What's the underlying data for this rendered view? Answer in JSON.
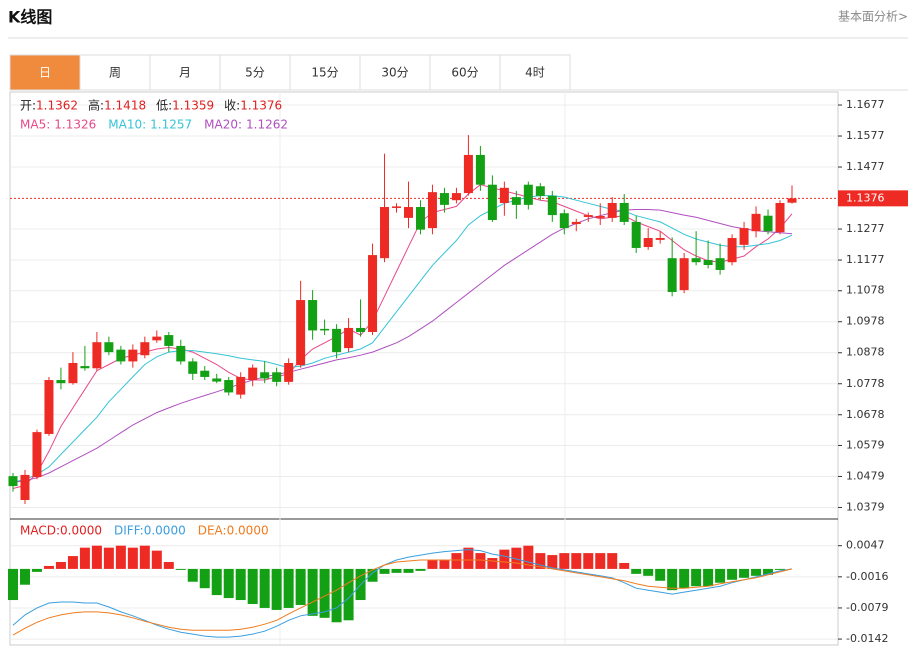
{
  "header": {
    "title": "K线图",
    "link": "基本面分析>"
  },
  "tabs": {
    "items": [
      "日",
      "周",
      "月",
      "5分",
      "15分",
      "30分",
      "60分",
      "4时"
    ],
    "active": 0
  },
  "chart_data": [
    {
      "type": "candlestick",
      "up_color": "#ee2a24",
      "down_color": "#14a014",
      "open": [
        1.048,
        1.0403,
        1.0477,
        1.0616,
        1.079,
        1.078,
        1.0835,
        1.0828,
        1.0912,
        1.0888,
        1.085,
        1.087,
        1.0918,
        1.0935,
        1.09,
        1.085,
        1.082,
        1.0795,
        1.079,
        1.0743,
        1.079,
        1.0815,
        1.0815,
        1.0784,
        1.0838,
        1.1048,
        1.0955,
        1.0955,
        1.0893,
        1.0958,
        1.0945,
        1.1183,
        1.1345,
        1.1313,
        1.1348,
        1.128,
        1.1393,
        1.137,
        1.1393,
        1.1516,
        1.142,
        1.1361,
        1.138,
        1.142,
        1.1415,
        1.1384,
        1.1328,
        1.1293,
        1.1316,
        1.1313,
        1.1313,
        1.1361,
        1.13,
        1.1219,
        1.1242,
        1.1183,
        1.108,
        1.1183,
        1.1177,
        1.1183,
        1.117,
        1.1226,
        1.127,
        1.132,
        1.1267,
        1.1362
      ],
      "high": [
        1.049,
        1.05,
        1.063,
        1.08,
        1.083,
        1.088,
        1.09,
        1.0945,
        1.093,
        1.09,
        1.0905,
        1.093,
        1.095,
        1.0945,
        1.092,
        1.086,
        1.0835,
        1.081,
        1.08,
        1.0815,
        1.084,
        1.085,
        1.083,
        1.086,
        1.111,
        1.108,
        1.0985,
        1.097,
        1.099,
        1.105,
        1.123,
        1.152,
        1.136,
        1.143,
        1.137,
        1.142,
        1.141,
        1.141,
        1.158,
        1.1545,
        1.145,
        1.143,
        1.14,
        1.143,
        1.1425,
        1.14,
        1.134,
        1.131,
        1.133,
        1.136,
        1.138,
        1.139,
        1.132,
        1.128,
        1.127,
        1.125,
        1.12,
        1.127,
        1.124,
        1.123,
        1.126,
        1.13,
        1.135,
        1.134,
        1.137,
        1.1418
      ],
      "low": [
        1.043,
        1.039,
        1.047,
        1.061,
        1.076,
        1.0775,
        1.082,
        1.082,
        1.087,
        1.084,
        1.083,
        1.086,
        1.091,
        1.088,
        1.084,
        1.079,
        1.079,
        1.078,
        1.074,
        1.073,
        1.077,
        1.078,
        1.077,
        1.0775,
        1.083,
        1.092,
        1.0935,
        1.086,
        1.088,
        1.093,
        1.0935,
        1.117,
        1.133,
        1.128,
        1.126,
        1.126,
        1.133,
        1.136,
        1.1385,
        1.14,
        1.13,
        1.132,
        1.131,
        1.134,
        1.137,
        1.13,
        1.126,
        1.127,
        1.13,
        1.129,
        1.13,
        1.129,
        1.12,
        1.121,
        1.123,
        1.106,
        1.107,
        1.116,
        1.115,
        1.113,
        1.116,
        1.121,
        1.125,
        1.126,
        1.126,
        1.1359
      ],
      "close": [
        1.0448,
        1.0484,
        1.0622,
        1.079,
        1.078,
        1.0845,
        1.0828,
        1.0912,
        1.088,
        1.085,
        1.0888,
        1.0912,
        1.093,
        1.09,
        1.085,
        1.081,
        1.08,
        1.0785,
        1.075,
        1.08,
        1.083,
        1.0795,
        1.0784,
        1.0845,
        1.1048,
        1.095,
        1.095,
        1.088,
        1.0958,
        1.0945,
        1.1193,
        1.1348,
        1.135,
        1.1348,
        1.1275,
        1.1396,
        1.1355,
        1.1393,
        1.1516,
        1.142,
        1.1306,
        1.141,
        1.1355,
        1.1355,
        1.1384,
        1.1322,
        1.128,
        1.13,
        1.1322,
        1.1319,
        1.1361,
        1.13,
        1.1216,
        1.1248,
        1.1248,
        1.1074,
        1.1183,
        1.117,
        1.1161,
        1.1145,
        1.1248,
        1.128,
        1.1326,
        1.127,
        1.1361,
        1.1376
      ],
      "ohlc_legend": [
        {
          "label": "开:",
          "value": 1.1362
        },
        {
          "label": "高:",
          "value": 1.1418
        },
        {
          "label": "低:",
          "value": 1.1359
        },
        {
          "label": "收:",
          "value": 1.1376
        }
      ],
      "ma_series": [
        {
          "name": "MA5:",
          "color": "#e8488a",
          "last": 1.1326,
          "values": [
            1.044,
            1.045,
            1.049,
            1.056,
            1.064,
            1.07,
            1.076,
            1.082,
            1.084,
            1.086,
            1.087,
            1.088,
            1.089,
            1.0895,
            1.089,
            1.088,
            1.086,
            1.084,
            1.0815,
            1.0795,
            1.079,
            1.079,
            1.08,
            1.081,
            1.0855,
            1.089,
            1.091,
            1.093,
            1.0955,
            1.0935,
            1.098,
            1.106,
            1.114,
            1.122,
            1.13,
            1.133,
            1.134,
            1.135,
            1.139,
            1.142,
            1.141,
            1.14,
            1.139,
            1.138,
            1.137,
            1.1365,
            1.135,
            1.1335,
            1.132,
            1.131,
            1.1315,
            1.132,
            1.13,
            1.1285,
            1.127,
            1.124,
            1.121,
            1.119,
            1.1175,
            1.117,
            1.118,
            1.119,
            1.122,
            1.1245,
            1.128,
            1.1326
          ]
        },
        {
          "name": "MA10:",
          "color": "#35c4d6",
          "last": 1.1257,
          "values": [
            1.046,
            1.047,
            1.0485,
            1.051,
            1.055,
            1.059,
            1.063,
            1.067,
            1.072,
            1.076,
            1.08,
            1.084,
            1.0865,
            1.088,
            1.0885,
            1.0885,
            1.088,
            1.0875,
            1.0868,
            1.086,
            1.0855,
            1.085,
            1.084,
            1.083,
            1.0835,
            1.0845,
            1.086,
            1.087,
            1.088,
            1.089,
            1.091,
            1.096,
            1.101,
            1.106,
            1.111,
            1.116,
            1.12,
            1.124,
            1.129,
            1.132,
            1.134,
            1.136,
            1.137,
            1.138,
            1.1385,
            1.1385,
            1.138,
            1.137,
            1.136,
            1.135,
            1.134,
            1.1335,
            1.132,
            1.131,
            1.13,
            1.128,
            1.126,
            1.1245,
            1.1235,
            1.1225,
            1.122,
            1.122,
            1.1225,
            1.123,
            1.124,
            1.1257
          ]
        },
        {
          "name": "MA20:",
          "color": "#b04fc0",
          "last": 1.1262,
          "values": [
            1.046,
            1.0465,
            1.0475,
            1.049,
            1.051,
            1.053,
            1.055,
            1.057,
            1.0595,
            1.062,
            1.0645,
            1.0665,
            1.0685,
            1.07,
            1.0715,
            1.0728,
            1.074,
            1.0752,
            1.0765,
            1.0778,
            1.079,
            1.08,
            1.0808,
            1.0815,
            1.0825,
            1.0835,
            1.0845,
            1.0855,
            1.0862,
            1.087,
            1.088,
            1.0895,
            1.091,
            1.093,
            1.0955,
            1.098,
            1.101,
            1.104,
            1.107,
            1.11,
            1.113,
            1.116,
            1.1185,
            1.121,
            1.1235,
            1.126,
            1.128,
            1.1295,
            1.131,
            1.132,
            1.133,
            1.1338,
            1.134,
            1.134,
            1.1338,
            1.133,
            1.1322,
            1.1315,
            1.1305,
            1.1295,
            1.1285,
            1.1278,
            1.1272,
            1.1268,
            1.1265,
            1.1262
          ]
        }
      ],
      "ylim": [
        1.0345,
        1.1719
      ],
      "yticks": [
        1.1677,
        1.1577,
        1.1477,
        1.1277,
        1.1177,
        1.1078,
        1.0978,
        1.0878,
        1.0778,
        1.0678,
        1.0579,
        1.0479,
        1.0379
      ],
      "grid": true,
      "current_price": 1.1376,
      "current_price_color": "#ee2a24"
    },
    {
      "type": "macd",
      "up_color": "#ee2a24",
      "down_color": "#14a014",
      "histogram": {
        "name": "MACD:",
        "color": "#e02020",
        "last": 0,
        "last_label": "0.0000",
        "values": [
          -0.0063,
          -0.0032,
          -0.0006,
          0.0006,
          0.0014,
          0.0026,
          0.0043,
          0.0047,
          0.0043,
          0.0047,
          0.0043,
          0.0047,
          0.0037,
          0.0014,
          -0.0002,
          -0.0026,
          -0.0039,
          -0.0053,
          -0.0059,
          -0.0063,
          -0.0071,
          -0.0079,
          -0.0083,
          -0.0079,
          -0.0073,
          -0.0095,
          -0.0099,
          -0.0108,
          -0.0104,
          -0.0063,
          -0.0026,
          -0.001,
          -0.0008,
          -0.0008,
          -0.0004,
          0.0018,
          0.0018,
          0.0032,
          0.0043,
          0.0032,
          0.0022,
          0.0039,
          0.0043,
          0.0047,
          0.0032,
          0.0028,
          0.0032,
          0.0032,
          0.0032,
          0.0032,
          0.0032,
          0.0012,
          -0.001,
          -0.0014,
          -0.0024,
          -0.0043,
          -0.0039,
          -0.0035,
          -0.0035,
          -0.0028,
          -0.0022,
          -0.0018,
          -0.0014,
          -0.0012,
          -0.0002,
          0
        ]
      },
      "series": [
        {
          "name": "DIFF:",
          "color": "#3a9ee0",
          "last": 0,
          "last_label": "0.0000",
          "values": [
            -0.0114,
            -0.0093,
            -0.0079,
            -0.0069,
            -0.0067,
            -0.0067,
            -0.0069,
            -0.0069,
            -0.0077,
            -0.0087,
            -0.0095,
            -0.0104,
            -0.0114,
            -0.0122,
            -0.0128,
            -0.0132,
            -0.0136,
            -0.0138,
            -0.0138,
            -0.0136,
            -0.0132,
            -0.0126,
            -0.0116,
            -0.0104,
            -0.0095,
            -0.0091,
            -0.0087,
            -0.0079,
            -0.0059,
            -0.0032,
            -0.0008,
            0.0008,
            0.0018,
            0.0024,
            0.0028,
            0.0032,
            0.0035,
            0.0037,
            0.0039,
            0.0037,
            0.003,
            0.0026,
            0.002,
            0.0014,
            0.0008,
            0.0002,
            -0.0002,
            -0.0006,
            -0.001,
            -0.0014,
            -0.0018,
            -0.0028,
            -0.0039,
            -0.0043,
            -0.0047,
            -0.0051,
            -0.0047,
            -0.0043,
            -0.0039,
            -0.0035,
            -0.0028,
            -0.0022,
            -0.0016,
            -0.001,
            -0.0004,
            0
          ]
        },
        {
          "name": "DEA:",
          "color": "#f07b1e",
          "last": 0,
          "last_label": "0.0000",
          "values": [
            -0.0134,
            -0.012,
            -0.0108,
            -0.0099,
            -0.0093,
            -0.0089,
            -0.0087,
            -0.0087,
            -0.0089,
            -0.0093,
            -0.0099,
            -0.0106,
            -0.0112,
            -0.0118,
            -0.0122,
            -0.0124,
            -0.0124,
            -0.0124,
            -0.0124,
            -0.0122,
            -0.0118,
            -0.0112,
            -0.0104,
            -0.0091,
            -0.0079,
            -0.0067,
            -0.0055,
            -0.0043,
            -0.0028,
            -0.0014,
            -0.0002,
            0.0008,
            0.0014,
            0.0016,
            0.0018,
            0.0018,
            0.0018,
            0.0018,
            0.0018,
            0.0018,
            0.0016,
            0.0014,
            0.0012,
            0.0008,
            0.0004,
            0,
            -0.0004,
            -0.0008,
            -0.0012,
            -0.0016,
            -0.002,
            -0.0024,
            -0.003,
            -0.0035,
            -0.0037,
            -0.0039,
            -0.0039,
            -0.0037,
            -0.0035,
            -0.003,
            -0.0026,
            -0.0022,
            -0.0018,
            -0.0012,
            -0.0006,
            0
          ]
        }
      ],
      "ylim": [
        -0.0154,
        0.0099
      ],
      "yticks": [
        0.0047,
        -0.0016,
        -0.0079,
        -0.0142
      ],
      "grid": true
    }
  ]
}
